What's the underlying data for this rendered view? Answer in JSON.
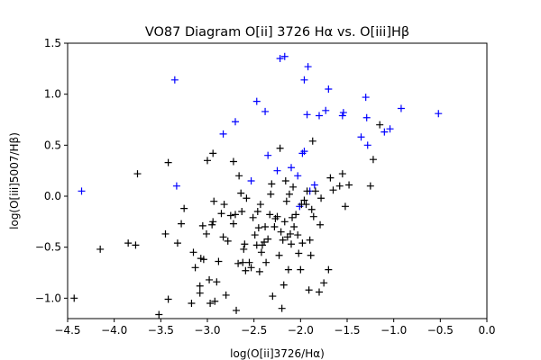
{
  "chart_data": {
    "type": "scatter",
    "title": "VO87 Diagram O[ii] 3726 Hα vs. O[iii]Hβ",
    "xlabel": "log(O[ii]3726/Hα)",
    "ylabel": "log(O[iii]5007/Hβ)",
    "xlim": [
      -4.5,
      0.0
    ],
    "ylim": [
      -1.2,
      1.5
    ],
    "xticks": [
      "-4.5",
      "-4.0",
      "-3.5",
      "-3.0",
      "-2.5",
      "-2.0",
      "-1.5",
      "-1.0",
      "-0.5",
      "0.0"
    ],
    "yticks": [
      "-1.0",
      "-0.5",
      "0.0",
      "0.5",
      "1.0",
      "1.5"
    ],
    "grid": false,
    "marker": "+",
    "series": [
      {
        "color": "#0000ff",
        "points": [
          [
            -4.35,
            0.05
          ],
          [
            -3.35,
            1.14
          ],
          [
            -3.33,
            0.1
          ],
          [
            -2.83,
            0.61
          ],
          [
            -2.7,
            0.73
          ],
          [
            -2.47,
            0.93
          ],
          [
            -2.35,
            0.4
          ],
          [
            -2.25,
            0.25
          ],
          [
            -2.22,
            1.35
          ],
          [
            -2.17,
            1.37
          ],
          [
            -2.1,
            0.28
          ],
          [
            -2.03,
            0.2
          ],
          [
            -1.98,
            0.42
          ],
          [
            -1.96,
            0.44
          ],
          [
            -1.96,
            1.14
          ],
          [
            -1.93,
            0.8
          ],
          [
            -1.92,
            1.27
          ],
          [
            -1.9,
            0.05
          ],
          [
            -1.85,
            0.11
          ],
          [
            -1.8,
            0.79
          ],
          [
            -1.73,
            0.84
          ],
          [
            -1.7,
            1.05
          ],
          [
            -1.55,
            0.79
          ],
          [
            -1.54,
            0.82
          ],
          [
            -1.35,
            0.58
          ],
          [
            -1.3,
            0.97
          ],
          [
            -1.29,
            0.77
          ],
          [
            -1.28,
            0.5
          ],
          [
            -1.1,
            0.63
          ],
          [
            -1.04,
            0.66
          ],
          [
            -0.92,
            0.86
          ],
          [
            -0.52,
            0.81
          ],
          [
            -2.53,
            0.15
          ],
          [
            -2.01,
            -0.1
          ],
          [
            -2.38,
            0.83
          ]
        ]
      },
      {
        "color": "#000000",
        "points": [
          [
            -4.43,
            -1.0
          ],
          [
            -4.15,
            -0.52
          ],
          [
            -3.85,
            -0.46
          ],
          [
            -3.77,
            -0.48
          ],
          [
            -3.75,
            0.22
          ],
          [
            -3.52,
            -1.16
          ],
          [
            -3.45,
            -0.37
          ],
          [
            -3.42,
            -1.01
          ],
          [
            -3.42,
            0.33
          ],
          [
            -3.32,
            -0.46
          ],
          [
            -3.28,
            -0.27
          ],
          [
            -3.25,
            -0.12
          ],
          [
            -3.17,
            -1.05
          ],
          [
            -3.15,
            -0.55
          ],
          [
            -3.13,
            -0.7
          ],
          [
            -3.08,
            -0.95
          ],
          [
            -3.08,
            -0.88
          ],
          [
            -3.07,
            -0.61
          ],
          [
            -3.05,
            -0.29
          ],
          [
            -3.04,
            -0.62
          ],
          [
            -3.01,
            -0.37
          ],
          [
            -3.0,
            0.35
          ],
          [
            -2.98,
            -0.82
          ],
          [
            -2.97,
            -1.05
          ],
          [
            -2.95,
            -0.28
          ],
          [
            -2.94,
            -0.25
          ],
          [
            -2.94,
            0.42
          ],
          [
            -2.93,
            -0.05
          ],
          [
            -2.92,
            -1.03
          ],
          [
            -2.9,
            -0.84
          ],
          [
            -2.88,
            -0.64
          ],
          [
            -2.85,
            -0.17
          ],
          [
            -2.83,
            -0.4
          ],
          [
            -2.82,
            -0.08
          ],
          [
            -2.8,
            -0.97
          ],
          [
            -2.78,
            -0.44
          ],
          [
            -2.75,
            -0.19
          ],
          [
            -2.72,
            0.34
          ],
          [
            -2.72,
            -0.27
          ],
          [
            -2.7,
            -0.18
          ],
          [
            -2.69,
            -1.12
          ],
          [
            -2.67,
            -0.66
          ],
          [
            -2.66,
            0.2
          ],
          [
            -2.64,
            0.03
          ],
          [
            -2.63,
            -0.15
          ],
          [
            -2.62,
            -0.65
          ],
          [
            -2.61,
            -0.52
          ],
          [
            -2.6,
            -0.47
          ],
          [
            -2.59,
            -0.73
          ],
          [
            -2.58,
            -0.02
          ],
          [
            -2.55,
            -0.65
          ],
          [
            -2.53,
            -0.7
          ],
          [
            -2.51,
            -0.21
          ],
          [
            -2.49,
            -0.38
          ],
          [
            -2.47,
            -0.48
          ],
          [
            -2.46,
            -0.15
          ],
          [
            -2.45,
            -0.31
          ],
          [
            -2.44,
            -0.74
          ],
          [
            -2.43,
            -0.08
          ],
          [
            -2.42,
            -0.55
          ],
          [
            -2.41,
            -0.48
          ],
          [
            -2.39,
            -0.45
          ],
          [
            -2.38,
            -0.3
          ],
          [
            -2.37,
            -0.65
          ],
          [
            -2.35,
            -0.42
          ],
          [
            -2.33,
            -0.18
          ],
          [
            -2.32,
            0.02
          ],
          [
            -2.3,
            -0.98
          ],
          [
            -2.28,
            -0.3
          ],
          [
            -2.27,
            -0.22
          ],
          [
            -2.25,
            -0.2
          ],
          [
            -2.23,
            -0.58
          ],
          [
            -2.22,
            0.47
          ],
          [
            -2.21,
            -0.35
          ],
          [
            -2.2,
            -1.1
          ],
          [
            -2.19,
            -0.43
          ],
          [
            -2.18,
            -0.87
          ],
          [
            -2.17,
            -0.25
          ],
          [
            -2.16,
            0.15
          ],
          [
            -2.15,
            -0.05
          ],
          [
            -2.14,
            -0.4
          ],
          [
            -2.13,
            -0.72
          ],
          [
            -2.12,
            0.02
          ],
          [
            -2.11,
            -0.37
          ],
          [
            -2.1,
            -0.47
          ],
          [
            -2.09,
            -0.21
          ],
          [
            -2.08,
            0.09
          ],
          [
            -2.07,
            -0.3
          ],
          [
            -2.05,
            -0.18
          ],
          [
            -2.03,
            -0.38
          ],
          [
            -2.02,
            -0.56
          ],
          [
            -2.0,
            -0.72
          ],
          [
            -1.99,
            -0.08
          ],
          [
            -1.98,
            -0.46
          ],
          [
            -1.96,
            -0.04
          ],
          [
            -1.94,
            -0.08
          ],
          [
            -1.93,
            0.05
          ],
          [
            -1.91,
            -0.92
          ],
          [
            -1.9,
            -0.43
          ],
          [
            -1.89,
            -0.58
          ],
          [
            -1.88,
            -0.13
          ],
          [
            -1.87,
            0.54
          ],
          [
            -1.86,
            -0.2
          ],
          [
            -1.84,
            0.05
          ],
          [
            -1.8,
            -0.94
          ],
          [
            -1.79,
            -0.28
          ],
          [
            -1.78,
            -0.02
          ],
          [
            -1.75,
            -0.85
          ],
          [
            -1.7,
            -0.72
          ],
          [
            -1.68,
            0.18
          ],
          [
            -1.65,
            0.06
          ],
          [
            -1.58,
            0.1
          ],
          [
            -1.55,
            0.22
          ],
          [
            -1.52,
            -0.1
          ],
          [
            -1.48,
            0.11
          ],
          [
            -1.25,
            0.1
          ],
          [
            -1.22,
            0.36
          ],
          [
            -1.15,
            0.7
          ],
          [
            -2.31,
            0.12
          ]
        ]
      }
    ]
  }
}
